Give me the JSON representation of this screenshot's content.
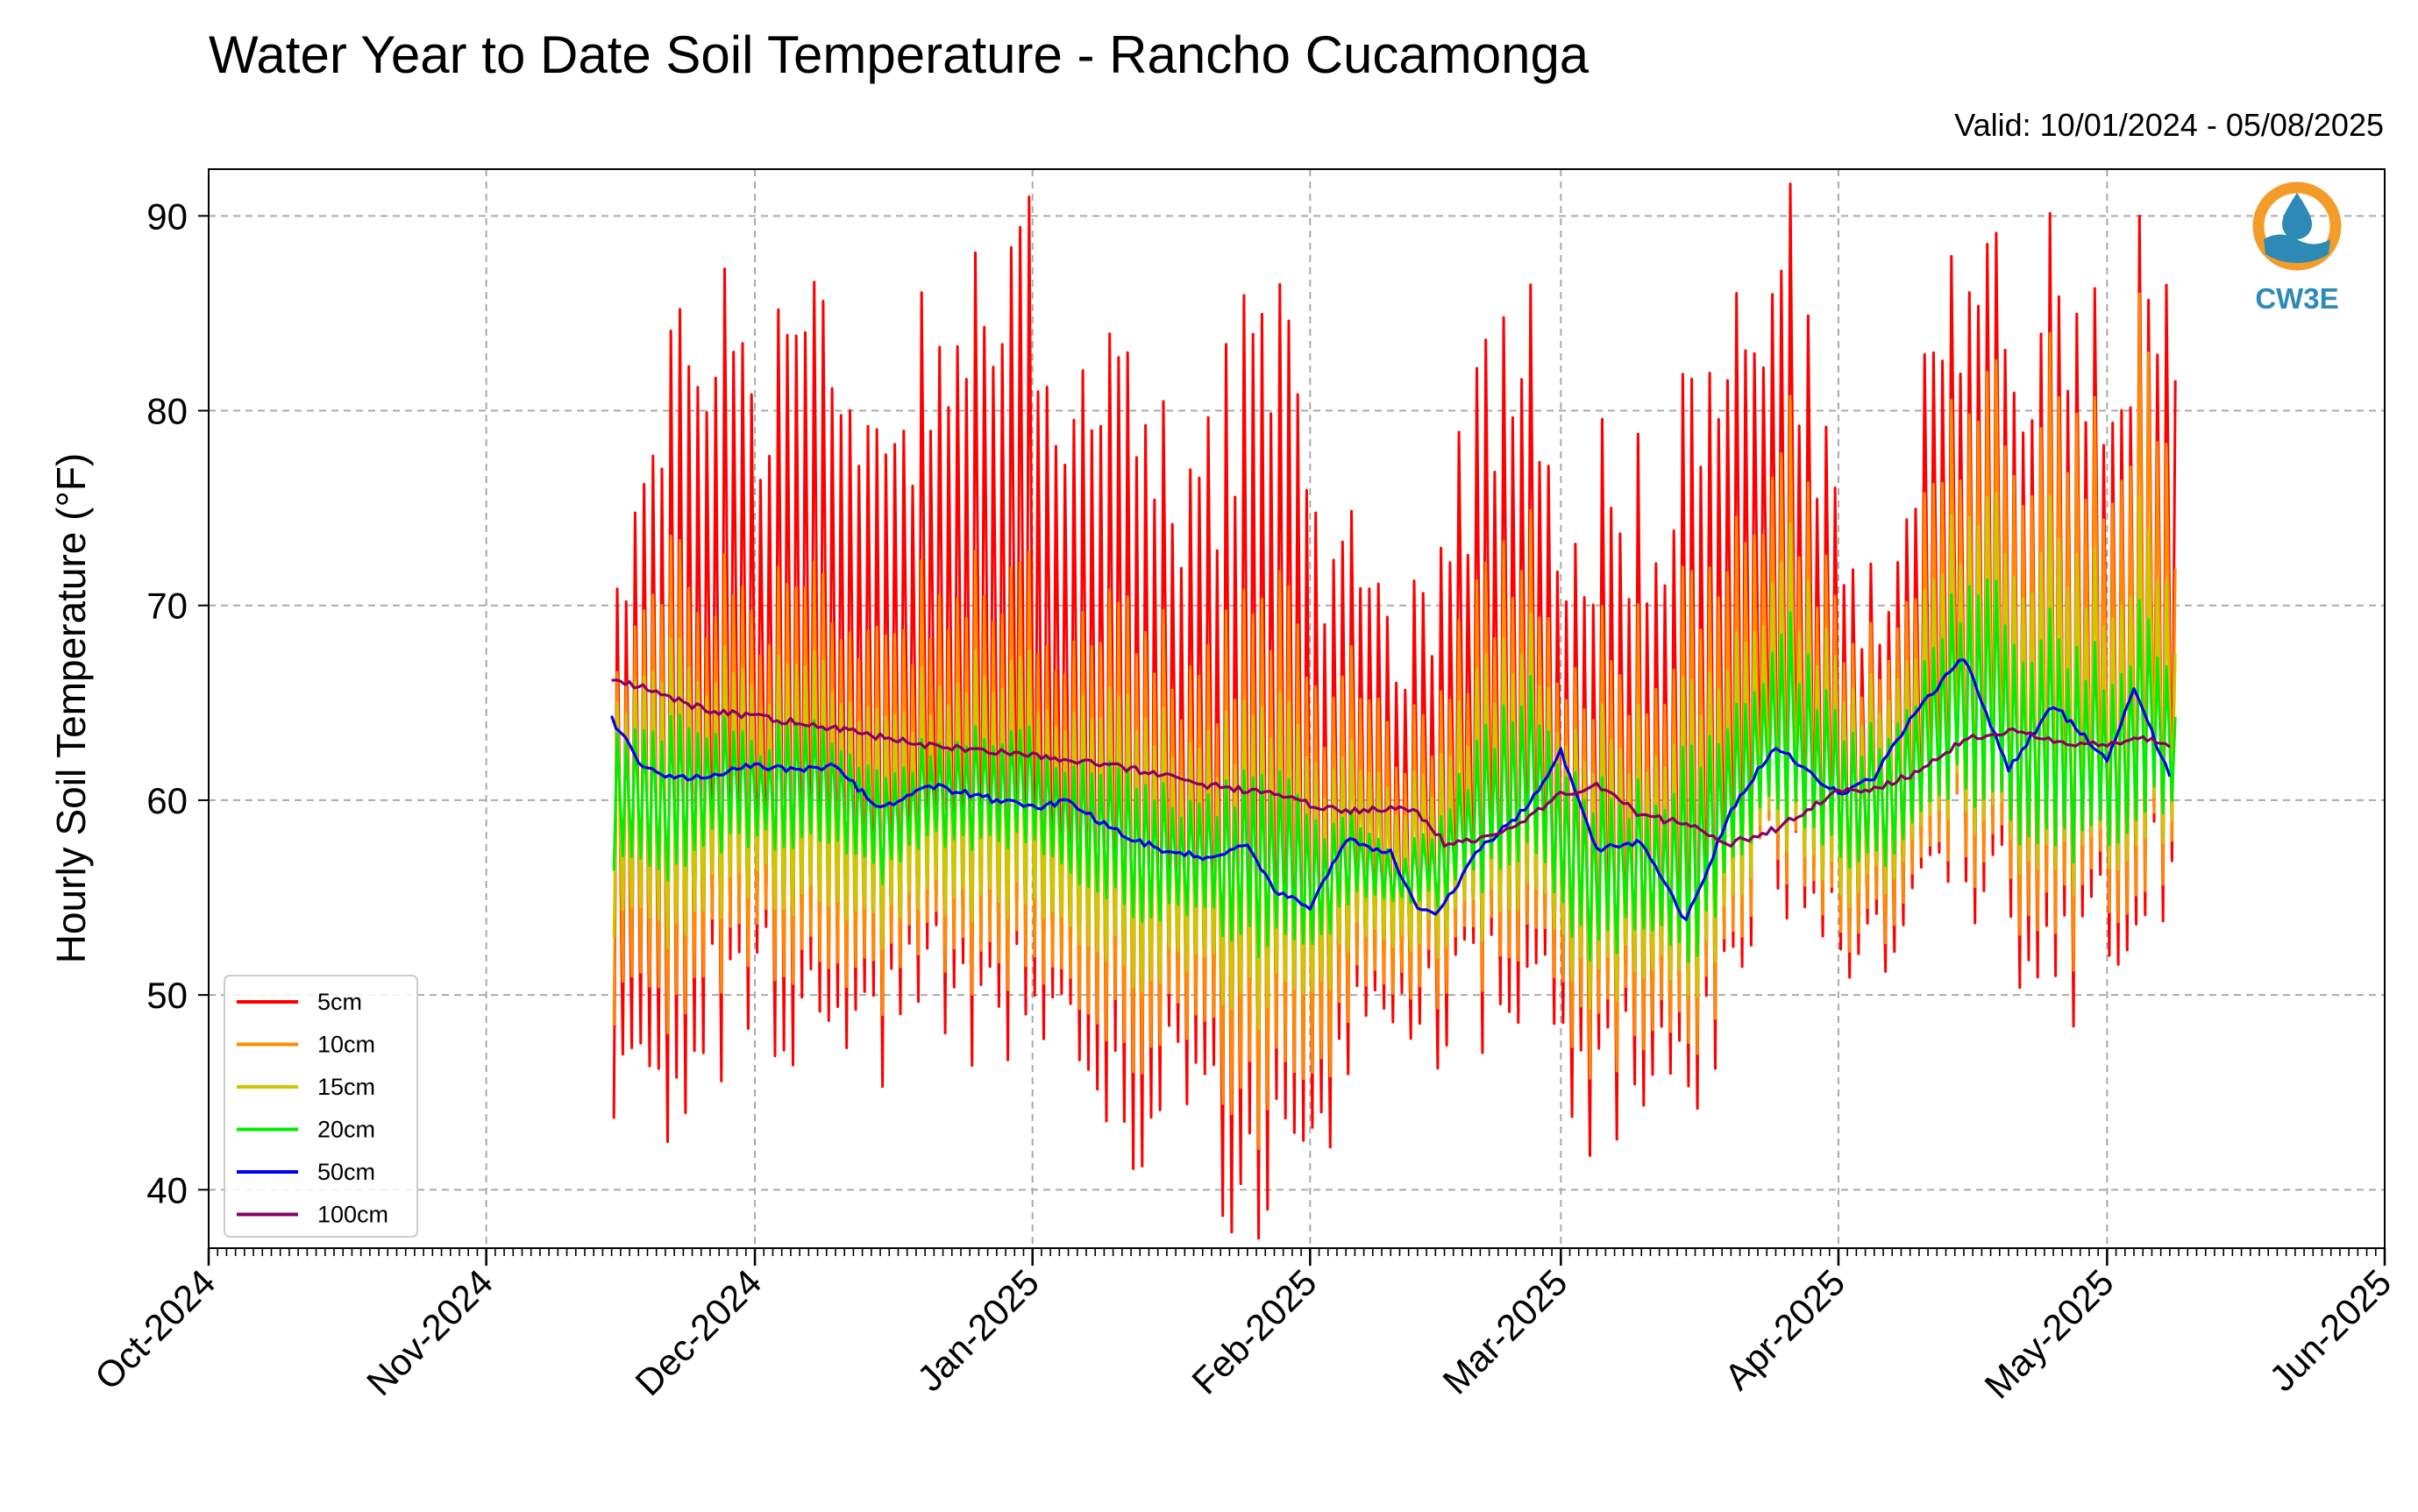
{
  "title": "Water Year to Date Soil Temperature - Rancho Cucamonga",
  "valid_text": "Valid: 10/01/2024 - 05/08/2025",
  "logo": {
    "text": "CW3E",
    "icon": "water-drop-logo-icon",
    "ring_color": "#f39c2a",
    "wave_color": "#2d8ab7"
  },
  "colors": {
    "grid": "#aaaaaa"
  },
  "chart_data": {
    "type": "line",
    "title": "Water Year to Date Soil Temperature - Rancho Cucamonga",
    "xlabel": "",
    "ylabel": "Hourly Soil Temperature (°F)",
    "ylim": [
      37,
      92.4
    ],
    "xlim": [
      "2024-10-01",
      "2025-06-01"
    ],
    "yticks": [
      40,
      50,
      60,
      70,
      80,
      90
    ],
    "xticks": [
      "Oct-2024",
      "Nov-2024",
      "Dec-2024",
      "Jan-2025",
      "Feb-2025",
      "Mar-2025",
      "Apr-2025",
      "May-2025",
      "Jun-2025"
    ],
    "grid": true,
    "legend_position": "lower-left",
    "series": [
      {
        "name": "5cm",
        "color": "#ff0000",
        "lw": 3.0,
        "x": [
          "2024-11-15",
          "2024-11-20",
          "2024-11-25",
          "2024-12-01",
          "2024-12-05",
          "2024-12-10",
          "2024-12-15",
          "2024-12-20",
          "2024-12-25",
          "2025-01-01",
          "2025-01-05",
          "2025-01-10",
          "2025-01-15",
          "2025-01-20",
          "2025-01-25",
          "2025-02-01",
          "2025-02-05",
          "2025-02-10",
          "2025-02-15",
          "2025-02-20",
          "2025-02-25",
          "2025-03-01",
          "2025-03-05",
          "2025-03-10",
          "2025-03-15",
          "2025-03-20",
          "2025-03-25",
          "2025-04-01",
          "2025-04-05",
          "2025-04-10",
          "2025-04-15",
          "2025-04-20",
          "2025-04-25",
          "2025-05-01",
          "2025-05-05",
          "2025-05-08"
        ],
        "max": [
          73,
          77,
          85,
          81,
          84,
          83,
          77,
          84,
          83,
          86,
          81,
          79,
          76,
          78,
          83,
          75,
          72,
          68,
          72,
          80,
          85,
          73,
          75,
          74,
          79,
          82,
          89,
          71,
          69,
          79,
          89,
          84,
          85,
          83,
          88,
          80
        ],
        "min": [
          46,
          44,
          49,
          51,
          49,
          50,
          47,
          51,
          50,
          50,
          48,
          44,
          45,
          43,
          40,
          40,
          48,
          50,
          49,
          50,
          52,
          46,
          44,
          47,
          43,
          52,
          57,
          52,
          53,
          55,
          57,
          54,
          52,
          53,
          56,
          57
        ]
      },
      {
        "name": "10cm",
        "color": "#ff8c00",
        "lw": 3.0,
        "x": [
          "2024-11-15",
          "2024-11-20",
          "2024-11-25",
          "2024-12-01",
          "2024-12-05",
          "2024-12-10",
          "2024-12-15",
          "2024-12-20",
          "2024-12-25",
          "2025-01-01",
          "2025-01-05",
          "2025-01-10",
          "2025-01-15",
          "2025-01-20",
          "2025-01-25",
          "2025-02-01",
          "2025-02-05",
          "2025-02-10",
          "2025-02-15",
          "2025-02-20",
          "2025-02-25",
          "2025-03-01",
          "2025-03-05",
          "2025-03-10",
          "2025-03-15",
          "2025-03-20",
          "2025-03-25",
          "2025-04-01",
          "2025-04-05",
          "2025-04-10",
          "2025-04-15",
          "2025-04-20",
          "2025-04-25",
          "2025-05-01",
          "2025-05-05",
          "2025-05-08"
        ],
        "max": [
          68,
          70,
          71,
          70,
          71,
          70,
          68,
          71,
          70,
          70,
          69,
          68,
          67,
          67,
          69,
          66,
          66,
          63,
          65,
          70,
          74,
          67,
          67,
          67,
          70,
          72,
          79,
          67,
          67,
          73,
          82,
          79,
          80,
          78,
          85,
          71
        ],
        "min": [
          50,
          49,
          52,
          53,
          52,
          52,
          50,
          53,
          52,
          52,
          50,
          48,
          48,
          47,
          45,
          44,
          50,
          51,
          51,
          52,
          54,
          49,
          47,
          49,
          46,
          53,
          58,
          53,
          54,
          56,
          58,
          56,
          54,
          55,
          57,
          58
        ]
      },
      {
        "name": "15cm",
        "color": "#c9c900",
        "lw": 3.0,
        "x": [
          "2024-11-15",
          "2024-11-20",
          "2024-11-25",
          "2024-12-01",
          "2024-12-05",
          "2024-12-10",
          "2024-12-15",
          "2024-12-20",
          "2024-12-25",
          "2025-01-01",
          "2025-01-05",
          "2025-01-10",
          "2025-01-15",
          "2025-01-20",
          "2025-01-25",
          "2025-02-01",
          "2025-02-05",
          "2025-02-10",
          "2025-02-15",
          "2025-02-20",
          "2025-02-25",
          "2025-03-01",
          "2025-03-05",
          "2025-03-10",
          "2025-03-15",
          "2025-03-20",
          "2025-03-25",
          "2025-04-01",
          "2025-04-05",
          "2025-04-10",
          "2025-04-15",
          "2025-04-20",
          "2025-04-25",
          "2025-05-01",
          "2025-05-05",
          "2025-05-08"
        ],
        "max": [
          66,
          66,
          67,
          66,
          67,
          66,
          64,
          66,
          66,
          66,
          65,
          64,
          63,
          63,
          64,
          62,
          62,
          60,
          62,
          66,
          69,
          64,
          63,
          63,
          65,
          67,
          73,
          65,
          65,
          69,
          76,
          73,
          73,
          71,
          75,
          67
        ],
        "min": [
          54,
          53,
          55,
          56,
          55,
          55,
          53,
          55,
          55,
          55,
          53,
          52,
          51,
          51,
          50,
          49,
          53,
          53,
          53,
          54,
          56,
          52,
          50,
          52,
          49,
          55,
          59,
          55,
          56,
          58,
          60,
          58,
          57,
          57,
          59,
          59
        ]
      },
      {
        "name": "20cm",
        "color": "#00ee00",
        "lw": 3.0,
        "x": [
          "2024-11-15",
          "2024-11-20",
          "2024-11-25",
          "2024-12-01",
          "2024-12-05",
          "2024-12-10",
          "2024-12-15",
          "2024-12-20",
          "2024-12-25",
          "2025-01-01",
          "2025-01-05",
          "2025-01-10",
          "2025-01-15",
          "2025-01-20",
          "2025-01-25",
          "2025-02-01",
          "2025-02-05",
          "2025-02-10",
          "2025-02-15",
          "2025-02-20",
          "2025-02-25",
          "2025-03-01",
          "2025-03-05",
          "2025-03-10",
          "2025-03-15",
          "2025-03-20",
          "2025-03-25",
          "2025-04-01",
          "2025-04-05",
          "2025-04-10",
          "2025-04-15",
          "2025-04-20",
          "2025-04-25",
          "2025-05-01",
          "2025-05-05",
          "2025-05-08"
        ],
        "max": [
          64,
          63,
          64,
          63,
          64,
          63,
          61,
          63,
          63,
          63,
          62,
          61,
          60,
          60,
          61,
          59,
          59,
          57,
          59,
          63,
          66,
          62,
          60,
          60,
          62,
          64,
          69,
          63,
          63,
          66,
          72,
          69,
          68,
          67,
          70,
          64
        ],
        "min": [
          57,
          56,
          58,
          58,
          58,
          58,
          56,
          58,
          58,
          58,
          56,
          55,
          54,
          54,
          53,
          52,
          55,
          55,
          55,
          56,
          58,
          54,
          52,
          54,
          51,
          57,
          60,
          57,
          57,
          59,
          61,
          59,
          58,
          58,
          60,
          60
        ]
      },
      {
        "name": "50cm",
        "color": "#0000ee",
        "lw": 3.2,
        "x": [
          "2024-11-15",
          "2024-11-18",
          "2024-11-22",
          "2024-11-27",
          "2024-12-01",
          "2024-12-05",
          "2024-12-10",
          "2024-12-15",
          "2024-12-20",
          "2024-12-25",
          "2025-01-01",
          "2025-01-05",
          "2025-01-10",
          "2025-01-15",
          "2025-01-20",
          "2025-01-25",
          "2025-01-28",
          "2025-02-01",
          "2025-02-05",
          "2025-02-10",
          "2025-02-13",
          "2025-02-15",
          "2025-02-20",
          "2025-02-25",
          "2025-03-01",
          "2025-03-05",
          "2025-03-10",
          "2025-03-15",
          "2025-03-20",
          "2025-03-25",
          "2025-04-01",
          "2025-04-05",
          "2025-04-10",
          "2025-04-15",
          "2025-04-20",
          "2025-04-25",
          "2025-05-01",
          "2025-05-04",
          "2025-05-08"
        ],
        "y": [
          64.2,
          62.0,
          61.1,
          61.4,
          61.8,
          61.6,
          61.7,
          59.5,
          60.8,
          60.3,
          59.6,
          59.9,
          58.5,
          57.5,
          57.1,
          57.6,
          55.4,
          54.5,
          58.0,
          57.3,
          54.5,
          54.0,
          57.5,
          59.5,
          62.5,
          57.5,
          57.8,
          53.8,
          59.5,
          62.8,
          60.3,
          61.2,
          64.8,
          67.3,
          61.6,
          64.9,
          62.1,
          65.8,
          61.2
        ]
      },
      {
        "name": "100cm",
        "color": "#880066",
        "lw": 3.2,
        "x": [
          "2024-11-15",
          "2024-11-20",
          "2024-11-25",
          "2024-12-01",
          "2024-12-10",
          "2024-12-20",
          "2025-01-01",
          "2025-01-10",
          "2025-01-20",
          "2025-01-28",
          "2025-02-01",
          "2025-02-05",
          "2025-02-11",
          "2025-02-13",
          "2025-02-16",
          "2025-02-20",
          "2025-02-25",
          "2025-03-01",
          "2025-03-05",
          "2025-03-10",
          "2025-03-15",
          "2025-03-20",
          "2025-03-25",
          "2025-04-01",
          "2025-04-05",
          "2025-04-10",
          "2025-04-15",
          "2025-04-20",
          "2025-04-25",
          "2025-05-01",
          "2025-05-05",
          "2025-05-08"
        ],
        "y": [
          66.2,
          65.6,
          64.7,
          64.3,
          63.7,
          62.8,
          62.3,
          61.8,
          60.8,
          60.3,
          59.8,
          59.4,
          59.6,
          59.4,
          57.8,
          58.0,
          59.0,
          60.3,
          60.8,
          59.2,
          58.8,
          57.8,
          58.5,
          60.5,
          60.6,
          61.5,
          63.1,
          63.6,
          63.0,
          62.8,
          63.2,
          62.8
        ]
      }
    ]
  }
}
